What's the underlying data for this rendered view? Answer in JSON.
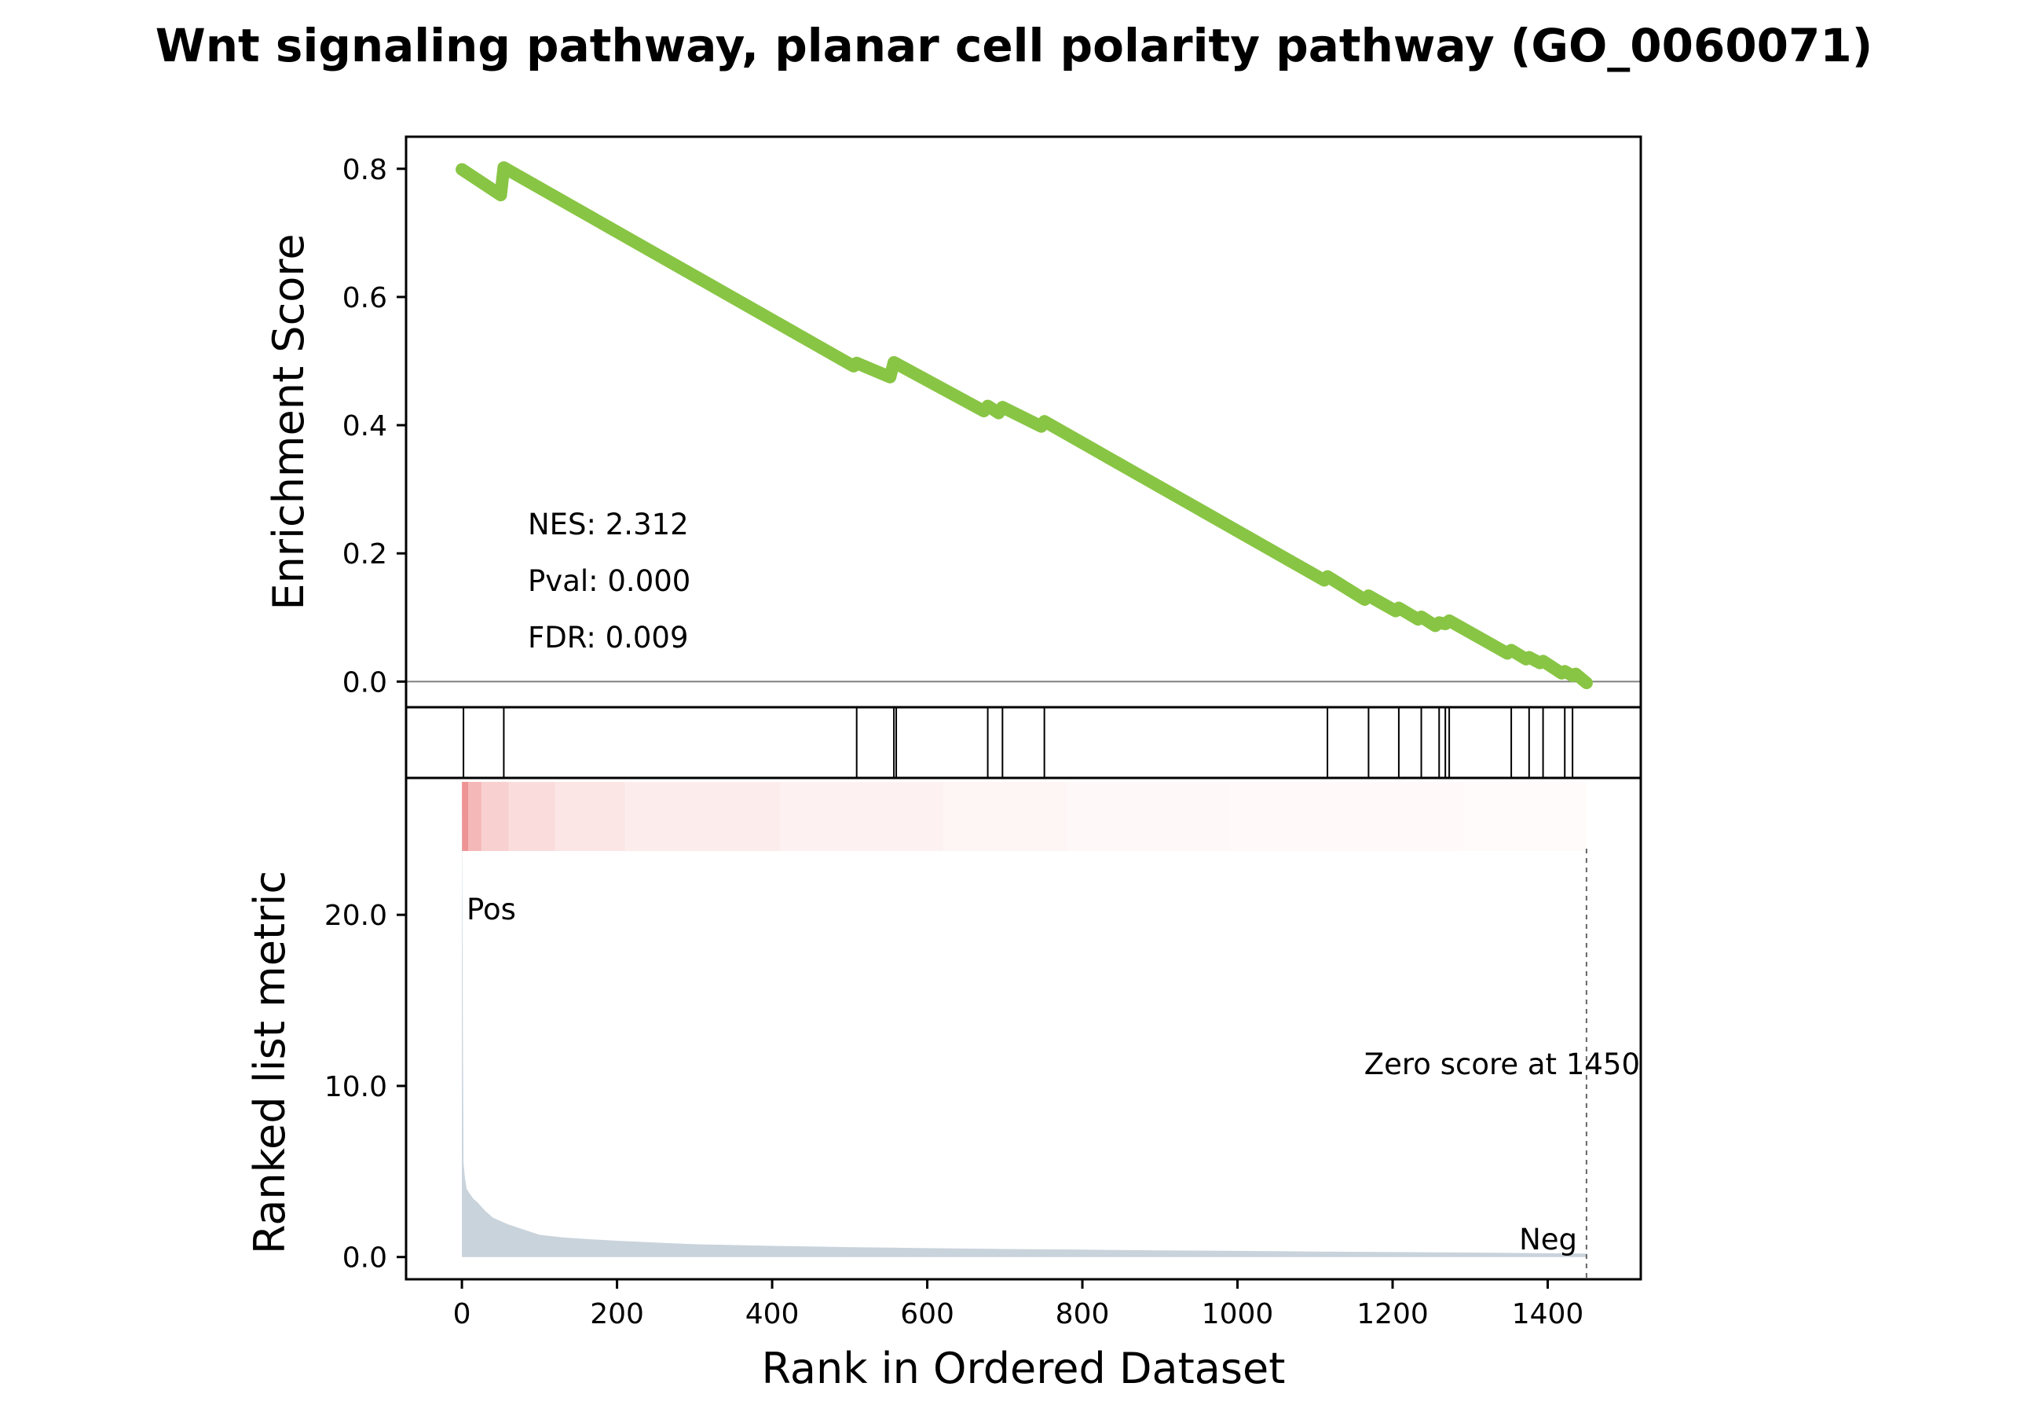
{
  "chart_data": {
    "type": "line",
    "title": "Wnt signaling pathway, planar cell polarity pathway (GO_0060071)",
    "xlabel": "Rank in Ordered Dataset",
    "xlim": [
      -72,
      1520
    ],
    "x_ticks": [
      0,
      200,
      400,
      600,
      800,
      1000,
      1200,
      1400
    ],
    "enrichment_panel": {
      "ylabel": "Enrichment Score",
      "ylim": [
        -0.04,
        0.85
      ],
      "y_ticks": [
        "0.0",
        "0.2",
        "0.4",
        "0.6",
        "0.8"
      ],
      "y_tick_values": [
        0,
        0.2,
        0.4,
        0.6,
        0.8
      ],
      "line_color": "#88c544",
      "zero_line": true,
      "series": [
        {
          "x": [
            0,
            50,
            54,
            505,
            509,
            552,
            557,
            673,
            678,
            692,
            697,
            747,
            751,
            1112,
            1116,
            1164,
            1169,
            1204,
            1208,
            1233,
            1237,
            1255,
            1260,
            1268,
            1273,
            1348,
            1353,
            1372,
            1376,
            1390,
            1394,
            1418,
            1422,
            1432,
            1436,
            1450
          ],
          "y": [
            0.799,
            0.759,
            0.802,
            0.492,
            0.497,
            0.475,
            0.498,
            0.422,
            0.43,
            0.419,
            0.428,
            0.398,
            0.406,
            0.158,
            0.164,
            0.128,
            0.134,
            0.11,
            0.115,
            0.097,
            0.101,
            0.087,
            0.092,
            0.09,
            0.095,
            0.044,
            0.049,
            0.035,
            0.038,
            0.029,
            0.032,
            0.013,
            0.016,
            0.009,
            0.012,
            -0.002
          ]
        }
      ],
      "annotations": [
        "NES: 2.312",
        "Pval: 0.000",
        "FDR: 0.009"
      ]
    },
    "hits_panel": {
      "hit_ranks": [
        2,
        54,
        509,
        557,
        560,
        678,
        697,
        751,
        1116,
        1169,
        1208,
        1237,
        1260,
        1268,
        1273,
        1353,
        1376,
        1394,
        1422,
        1432
      ]
    },
    "ranked_metric_panel": {
      "ylabel": "Ranked list metric",
      "ylim": [
        -1.3,
        28
      ],
      "y_ticks": [
        "0.0",
        "10.0",
        "20.0"
      ],
      "y_tick_values": [
        0,
        10,
        20
      ],
      "fill_color": "#c9d3dc",
      "series": [
        {
          "x": [
            0,
            2,
            4,
            6,
            10,
            15,
            20,
            30,
            40,
            50,
            60,
            80,
            100,
            130,
            160,
            200,
            260,
            300,
            400,
            500,
            600,
            700,
            800,
            900,
            1000,
            1100,
            1200,
            1300,
            1400,
            1450
          ],
          "y": [
            26.7,
            5.5,
            4.6,
            4.0,
            3.7,
            3.4,
            3.2,
            2.7,
            2.3,
            2.1,
            1.9,
            1.6,
            1.3,
            1.15,
            1.05,
            0.95,
            0.82,
            0.75,
            0.65,
            0.58,
            0.52,
            0.47,
            0.43,
            0.39,
            0.36,
            0.32,
            0.29,
            0.26,
            0.22,
            0.2
          ]
        }
      ],
      "pos_label": "Pos",
      "pos_color": "#ff0000",
      "neg_label": "Neg",
      "neg_color": "#0000ff",
      "zero_cross_rank": 1450,
      "zero_cross_label": "Zero score at 1450"
    },
    "heat_strip": {
      "colors": [
        "#ee9494",
        "#f5b8b8",
        "#f9d0d0",
        "#fbdcdc",
        "#fce5e5",
        "#fdecec",
        "#fdf1f1",
        "#fef5f5",
        "#fef8f8",
        "#fff9f9",
        "#fffbfb"
      ],
      "breaks": [
        0,
        8,
        25,
        60,
        120,
        210,
        410,
        620,
        780,
        990,
        1290,
        1450
      ]
    }
  }
}
